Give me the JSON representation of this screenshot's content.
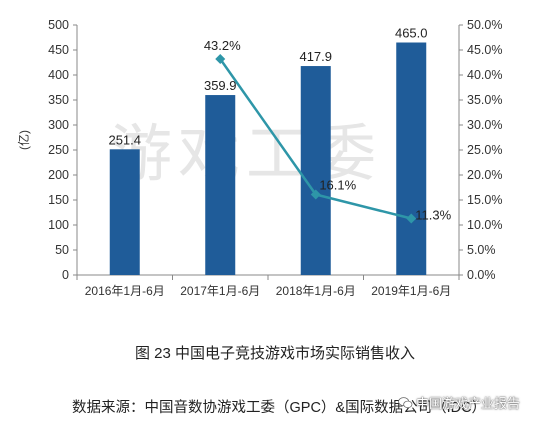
{
  "chart_data": {
    "type": "bar+line",
    "categories": [
      "2016年1月-6月",
      "2017年1月-6月",
      "2018年1月-6月",
      "2019年1月-6月"
    ],
    "bar_series": {
      "values": [
        251.4,
        359.9,
        417.9,
        465.0
      ],
      "value_labels": [
        "251.4",
        "359.9",
        "417.9",
        "465.0"
      ],
      "color": "#1f5c99"
    },
    "line_series": {
      "values": [
        null,
        43.2,
        16.1,
        11.3
      ],
      "value_labels": [
        "",
        "43.2%",
        "16.1%",
        "11.3%"
      ],
      "color": "#2e96a8"
    },
    "ylabel": "(亿)",
    "ylim": [
      0,
      500
    ],
    "yticks": [
      "0",
      "50",
      "100",
      "150",
      "200",
      "250",
      "300",
      "350",
      "400",
      "450",
      "500"
    ],
    "y2lim": [
      0,
      50
    ],
    "y2ticks": [
      "0.0%",
      "5.0%",
      "10.0%",
      "15.0%",
      "20.0%",
      "25.0%",
      "30.0%",
      "35.0%",
      "40.0%",
      "45.0%",
      "50.0%"
    ],
    "grid": false,
    "watermark": "游戏工委"
  },
  "caption": "图 23  中国电子竞技游戏市场实际销售收入",
  "source": "数据来源：中国音数协游戏工委（GPC）&国际数据公司（IDC）",
  "wechat_badge": "中国游戏产业报告",
  "icons": {
    "wechat_badge": "wechat-icon"
  }
}
